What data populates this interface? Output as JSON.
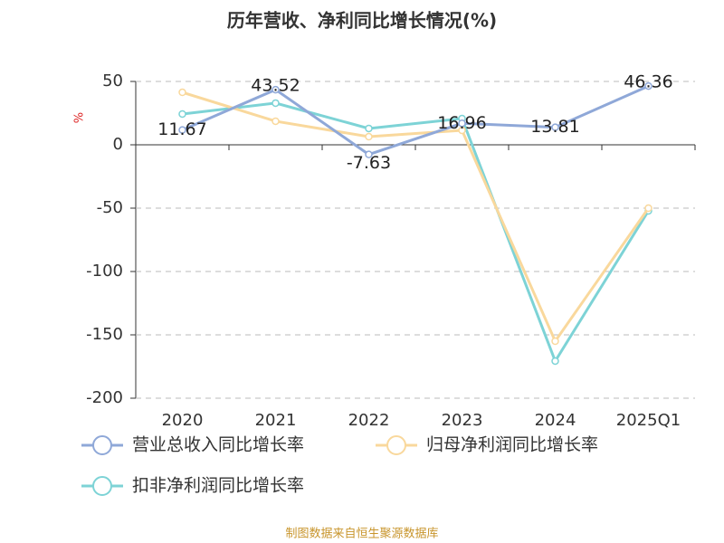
{
  "chart_data": {
    "type": "line",
    "title": "历年营收、净利同比增长情况(%)",
    "y_label": "%",
    "source": "制图数据来自恒生聚源数据库",
    "categories": [
      "2020",
      "2021",
      "2022",
      "2023",
      "2024",
      "2025Q1"
    ],
    "ylim": [
      -200,
      50
    ],
    "yticks": [
      50,
      0,
      -50,
      -100,
      -150,
      -200
    ],
    "grid": true,
    "series": [
      {
        "name": "营业总收入同比增长率",
        "color": "#8fa8d8",
        "values": [
          11.67,
          43.52,
          -7.63,
          16.96,
          13.81,
          46.36
        ],
        "data_labels": true
      },
      {
        "name": "归母净利润同比增长率",
        "color": "#f9d89c",
        "values": [
          41.4,
          18.6,
          6.4,
          11.4,
          -155,
          -50
        ]
      },
      {
        "name": "扣非净利润同比增长率",
        "color": "#7dd3d6",
        "values": [
          24.3,
          32.9,
          12.9,
          20.7,
          -170.7,
          -52.1
        ]
      }
    ]
  }
}
